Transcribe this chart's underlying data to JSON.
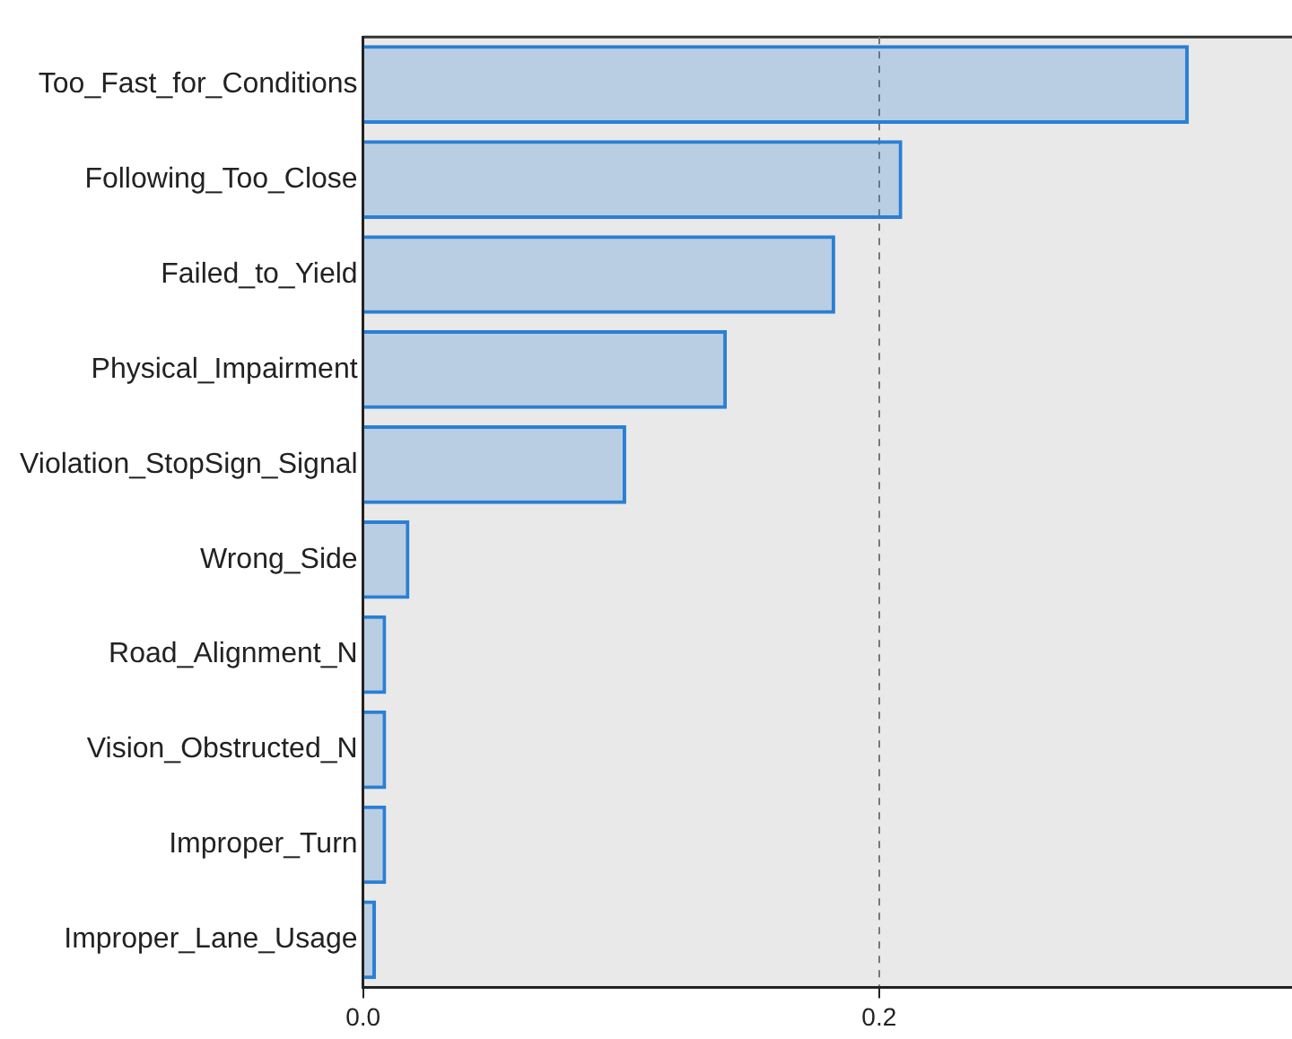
{
  "chart_data": {
    "type": "bar",
    "orientation": "horizontal",
    "categories": [
      "Too_Fast_for_Conditions",
      "Following_Too_Close",
      "Failed_to_Yield",
      "Physical_Impairment",
      "Violation_StopSign_Signal",
      "Wrong_Side",
      "Road_Alignment_N",
      "Vision_Obstructed_N",
      "Improper_Turn",
      "Improper_Lane_Usage"
    ],
    "values": [
      0.32,
      0.209,
      0.183,
      0.141,
      0.102,
      0.018,
      0.009,
      0.009,
      0.009,
      0.005
    ],
    "color": "#2a7fd4",
    "xlim": [
      0,
      0.36
    ],
    "xticks": [
      {
        "value": 0,
        "label": "0.0"
      },
      0.2
    ],
    "grid": "x",
    "line_style": "dashed",
    "legend": false
  }
}
